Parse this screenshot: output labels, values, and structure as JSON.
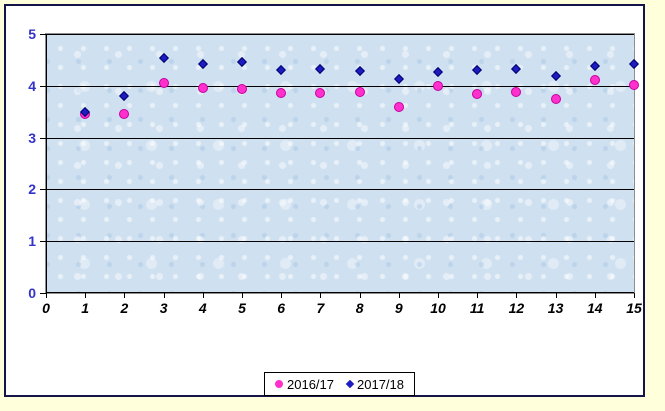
{
  "window": {
    "page_background": "#FFFFDB",
    "frame_border_color": "#14144A",
    "frame_background": "#FFFFFF"
  },
  "chart_data": {
    "type": "scatter",
    "title": "",
    "xlabel": "",
    "ylabel": "",
    "xlim": [
      0,
      15
    ],
    "ylim": [
      0,
      5
    ],
    "x_ticks": [
      0,
      1,
      2,
      3,
      4,
      5,
      6,
      7,
      8,
      9,
      10,
      11,
      12,
      13,
      14,
      15
    ],
    "y_ticks": [
      0,
      1,
      2,
      3,
      4,
      5
    ],
    "grid": "horizontal-major",
    "plot_background": "#CFE0F0",
    "y_tick_label_color": "#3333CC",
    "x_tick_label_color": "#000000",
    "legend_position": "bottom-center",
    "x": [
      1,
      2,
      3,
      4,
      5,
      6,
      7,
      8,
      9,
      10,
      11,
      12,
      13,
      14,
      15
    ],
    "series": [
      {
        "name": "2016/17",
        "marker": "circle",
        "fill": "#FF30CC",
        "stroke": "#C400A0",
        "values": [
          3.46,
          3.46,
          4.05,
          3.96,
          3.94,
          3.86,
          3.87,
          3.88,
          3.59,
          3.99,
          3.84,
          3.88,
          3.74,
          4.11,
          4.02
        ]
      },
      {
        "name": "2017/18",
        "marker": "diamond",
        "fill": "#1C1CC0",
        "stroke": "#00006B",
        "values": [
          3.5,
          3.8,
          4.53,
          4.42,
          4.46,
          4.3,
          4.33,
          4.29,
          4.14,
          4.27,
          4.3,
          4.33,
          4.19,
          4.38,
          4.42
        ]
      }
    ]
  },
  "legend": {
    "items": [
      {
        "label": "2016/17"
      },
      {
        "label": "2017/18"
      }
    ]
  }
}
